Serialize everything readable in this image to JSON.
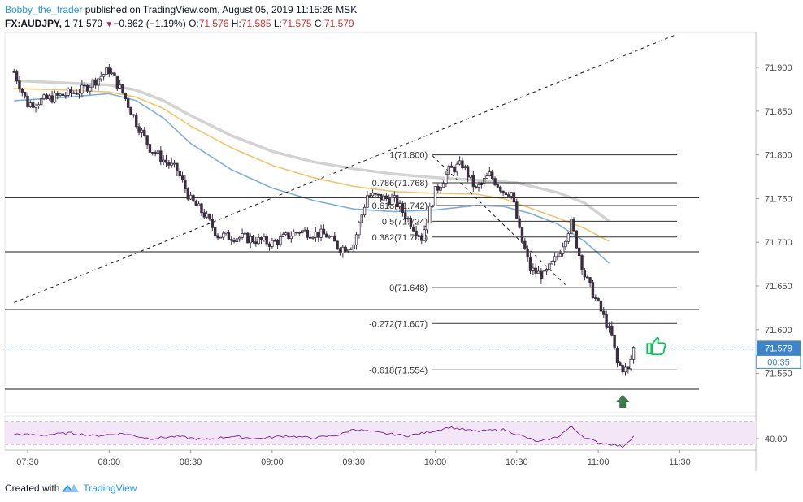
{
  "header": {
    "author": "Bobby_the_trader",
    "published_text": " published on TradingView.com, August 05, 2019 11:15:26 MSK",
    "symbol": "FX:AUDJPY, 1",
    "last": "71.579",
    "change": "−0.862 (−1.19%)",
    "o_label": "O:",
    "o_value": "71.576",
    "h_label": "H:",
    "h_value": "71.585",
    "l_label": "L:",
    "l_value": "71.575",
    "c_label": "C:",
    "c_value": "71.579"
  },
  "footer": {
    "created_with": "Created with",
    "brand": "TradingView"
  },
  "colors": {
    "up_candle": "#ffffff",
    "down_candle": "#3a2f3f",
    "wick": "#3a2f3f",
    "ma_fast": "#7eaee0",
    "ma_mid": "#efc56b",
    "ma_slow": "#d2d2d2",
    "rsi_line": "#7b1fa2",
    "rsi_fill": "#f3e6f7",
    "price_badge": "#3d85c6",
    "arrow": "#3d7a4b",
    "thumb": "#00c853"
  },
  "chart_data": {
    "type": "candlestick",
    "price_axis": {
      "range": [
        71.505,
        71.94
      ],
      "ticks": [
        "71.900",
        "71.850",
        "71.800",
        "71.750",
        "71.700",
        "71.650",
        "71.600",
        "71.550"
      ],
      "current_price": "71.579",
      "countdown": "00:35"
    },
    "time_axis": {
      "ticks": [
        "07:30",
        "08:00",
        "08:30",
        "09:00",
        "09:30",
        "10:00",
        "10:30",
        "11:00",
        "11:30"
      ]
    },
    "fibonacci": [
      {
        "label": "1(71.800)",
        "price": 71.8
      },
      {
        "label": "0.786(71.768)",
        "price": 71.768
      },
      {
        "label": "0.618(71.742)",
        "price": 71.742
      },
      {
        "label": "0.5(71.724)",
        "price": 71.724
      },
      {
        "label": "0.382(71.706)",
        "price": 71.706
      },
      {
        "label": "0(71.648)",
        "price": 71.648
      },
      {
        "label": "-0.272(71.607)",
        "price": 71.607
      },
      {
        "label": "-0.618(71.554)",
        "price": 71.554
      }
    ],
    "horizontal_levels": [
      71.751,
      71.689,
      71.623,
      71.532
    ],
    "trendlines": [
      {
        "style": "dashed",
        "from": [
          "07:25",
          71.631
        ],
        "to": [
          "11:29",
          71.938
        ]
      },
      {
        "style": "dashed",
        "from": [
          "09:59",
          71.799
        ],
        "to": [
          "10:48",
          71.651
        ]
      }
    ],
    "moving_averages": [
      {
        "color": "ma_slow",
        "points": [
          [
            "07:25",
            71.885
          ],
          [
            "07:45",
            71.882
          ],
          [
            "08:00",
            71.88
          ],
          [
            "08:10",
            71.874
          ],
          [
            "08:20",
            71.862
          ],
          [
            "08:30",
            71.845
          ],
          [
            "08:45",
            71.822
          ],
          [
            "09:00",
            71.804
          ],
          [
            "09:15",
            71.792
          ],
          [
            "09:30",
            71.784
          ],
          [
            "09:45",
            71.778
          ],
          [
            "10:00",
            71.774
          ],
          [
            "10:15",
            71.771
          ],
          [
            "10:30",
            71.768
          ],
          [
            "10:45",
            71.757
          ],
          [
            "10:55",
            71.745
          ],
          [
            "11:04",
            71.724
          ]
        ]
      },
      {
        "color": "ma_mid",
        "points": [
          [
            "07:25",
            71.876
          ],
          [
            "07:45",
            71.874
          ],
          [
            "08:00",
            71.872
          ],
          [
            "08:10",
            71.866
          ],
          [
            "08:20",
            71.853
          ],
          [
            "08:30",
            71.833
          ],
          [
            "08:45",
            71.808
          ],
          [
            "09:00",
            71.788
          ],
          [
            "09:15",
            71.774
          ],
          [
            "09:30",
            71.764
          ],
          [
            "09:45",
            71.758
          ],
          [
            "10:00",
            71.756
          ],
          [
            "10:15",
            71.755
          ],
          [
            "10:25",
            71.75
          ],
          [
            "10:35",
            71.739
          ],
          [
            "10:45",
            71.728
          ],
          [
            "10:55",
            71.716
          ],
          [
            "11:04",
            71.701
          ]
        ]
      },
      {
        "color": "ma_fast",
        "points": [
          [
            "07:25",
            71.862
          ],
          [
            "07:45",
            71.866
          ],
          [
            "08:00",
            71.87
          ],
          [
            "08:10",
            71.862
          ],
          [
            "08:20",
            71.842
          ],
          [
            "08:30",
            71.813
          ],
          [
            "08:45",
            71.783
          ],
          [
            "09:00",
            71.762
          ],
          [
            "09:15",
            71.748
          ],
          [
            "09:30",
            71.738
          ],
          [
            "09:45",
            71.735
          ],
          [
            "10:00",
            71.737
          ],
          [
            "10:15",
            71.742
          ],
          [
            "10:25",
            71.741
          ],
          [
            "10:35",
            71.733
          ],
          [
            "10:45",
            71.721
          ],
          [
            "10:55",
            71.701
          ],
          [
            "11:04",
            71.676
          ]
        ]
      }
    ],
    "candle_path": [
      [
        "07:25",
        71.895
      ],
      [
        "07:30",
        71.858
      ],
      [
        "07:40",
        71.866
      ],
      [
        "07:50",
        71.874
      ],
      [
        "08:00",
        71.897
      ],
      [
        "08:05",
        71.871
      ],
      [
        "08:10",
        71.837
      ],
      [
        "08:15",
        71.808
      ],
      [
        "08:20",
        71.794
      ],
      [
        "08:25",
        71.782
      ],
      [
        "08:30",
        71.748
      ],
      [
        "08:35",
        71.732
      ],
      [
        "08:40",
        71.708
      ],
      [
        "08:50",
        71.705
      ],
      [
        "09:00",
        71.699
      ],
      [
        "09:10",
        71.713
      ],
      [
        "09:20",
        71.708
      ],
      [
        "09:25",
        71.693
      ],
      [
        "09:30",
        71.698
      ],
      [
        "09:35",
        71.754
      ],
      [
        "09:45",
        71.748
      ],
      [
        "09:55",
        71.705
      ],
      [
        "10:00",
        71.758
      ],
      [
        "10:05",
        71.782
      ],
      [
        "10:10",
        71.789
      ],
      [
        "10:15",
        71.76
      ],
      [
        "10:20",
        71.777
      ],
      [
        "10:25",
        71.759
      ],
      [
        "10:28",
        71.757
      ],
      [
        "10:31",
        71.712
      ],
      [
        "10:35",
        71.669
      ],
      [
        "10:40",
        71.661
      ],
      [
        "10:45",
        71.684
      ],
      [
        "10:50",
        71.722
      ],
      [
        "10:55",
        71.662
      ],
      [
        "11:00",
        71.628
      ],
      [
        "11:03",
        71.607
      ],
      [
        "11:05",
        71.591
      ],
      [
        "11:07",
        71.561
      ],
      [
        "11:09",
        71.556
      ],
      [
        "11:11",
        71.553
      ],
      [
        "11:13",
        71.579
      ]
    ],
    "rsi": {
      "ticks": [
        "40.00"
      ],
      "range": [
        20,
        80
      ],
      "upper_band": 70,
      "lower_band": 30,
      "points": [
        [
          "07:25",
          48
        ],
        [
          "07:35",
          46
        ],
        [
          "07:45",
          50
        ],
        [
          "07:55",
          45
        ],
        [
          "08:05",
          49
        ],
        [
          "08:15",
          40
        ],
        [
          "08:25",
          44
        ],
        [
          "08:35",
          38
        ],
        [
          "08:45",
          44
        ],
        [
          "08:55",
          40
        ],
        [
          "09:05",
          45
        ],
        [
          "09:15",
          41
        ],
        [
          "09:25",
          47
        ],
        [
          "09:30",
          57
        ],
        [
          "09:40",
          50
        ],
        [
          "09:50",
          45
        ],
        [
          "10:00",
          54
        ],
        [
          "10:05",
          60
        ],
        [
          "10:15",
          53
        ],
        [
          "10:25",
          56
        ],
        [
          "10:30",
          48
        ],
        [
          "10:38",
          34
        ],
        [
          "10:45",
          43
        ],
        [
          "10:50",
          61
        ],
        [
          "10:55",
          42
        ],
        [
          "11:00",
          33
        ],
        [
          "11:05",
          30
        ],
        [
          "11:09",
          26
        ],
        [
          "11:13",
          44
        ]
      ]
    },
    "annotations": [
      {
        "type": "arrow-up",
        "at": [
          "11:09",
          71.518
        ]
      },
      {
        "type": "thumbs-up",
        "at": [
          "11:18",
          71.581
        ]
      }
    ]
  }
}
